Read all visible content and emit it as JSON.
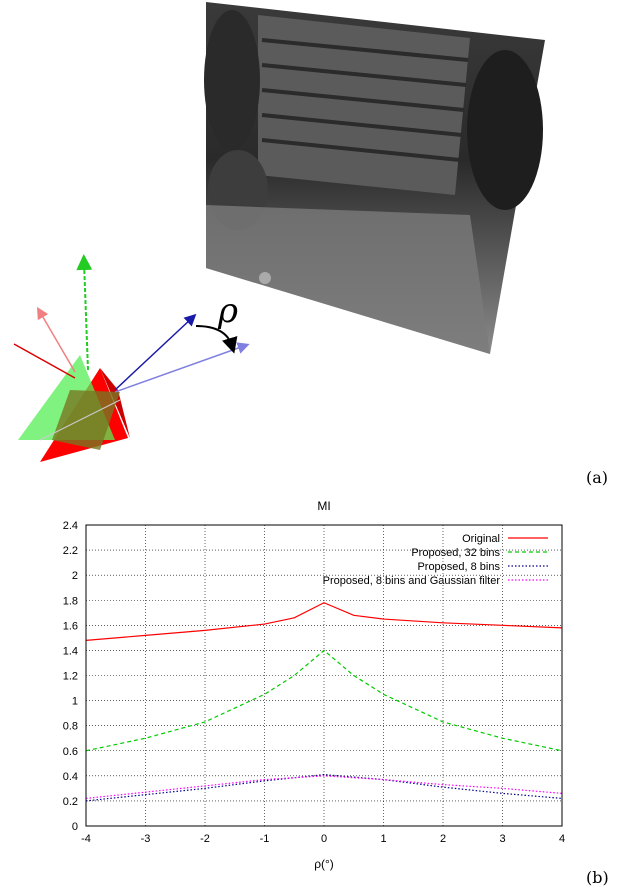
{
  "panel_a": {
    "label": "(a)",
    "rotation_symbol": "ρ"
  },
  "panel_b": {
    "label": "(b)"
  },
  "chart_data": {
    "type": "line",
    "title": "MI",
    "xlabel": "ρ(°)",
    "ylabel": "",
    "xlim": [
      -4,
      4
    ],
    "ylim": [
      0,
      2.4
    ],
    "xticks": [
      -4,
      -3,
      -2,
      -1,
      0,
      1,
      2,
      3,
      4
    ],
    "yticks": [
      0,
      0.2,
      0.4,
      0.6,
      0.8,
      1,
      1.2,
      1.4,
      1.6,
      1.8,
      2,
      2.2,
      2.4
    ],
    "grid": true,
    "legend_position": "top-right",
    "series": [
      {
        "name": "Original",
        "color": "#ff0000",
        "dash": "solid",
        "x": [
          -4,
          -3,
          -2,
          -1,
          -0.5,
          0,
          0.5,
          1,
          2,
          3,
          4
        ],
        "y": [
          1.48,
          1.52,
          1.56,
          1.61,
          1.66,
          1.78,
          1.68,
          1.65,
          1.62,
          1.6,
          1.58
        ]
      },
      {
        "name": "Proposed, 32 bins",
        "color": "#00cc00",
        "dash": "dashed",
        "x": [
          -4,
          -3,
          -2,
          -1,
          -0.5,
          0,
          0.5,
          1,
          2,
          3,
          4
        ],
        "y": [
          0.6,
          0.7,
          0.83,
          1.05,
          1.2,
          1.4,
          1.2,
          1.05,
          0.83,
          0.7,
          0.6
        ]
      },
      {
        "name": "Proposed, 8 bins",
        "color": "#00008b",
        "dash": "dotted",
        "x": [
          -4,
          -3,
          -2,
          -1,
          0,
          1,
          2,
          3,
          4
        ],
        "y": [
          0.2,
          0.25,
          0.3,
          0.36,
          0.41,
          0.37,
          0.31,
          0.26,
          0.22
        ]
      },
      {
        "name": "Proposed, 8 bins and Gaussian filter",
        "color": "#ff00ff",
        "dash": "dotted",
        "x": [
          -4,
          -3,
          -2,
          -1,
          0,
          1,
          2,
          3,
          4
        ],
        "y": [
          0.22,
          0.27,
          0.32,
          0.37,
          0.4,
          0.37,
          0.33,
          0.3,
          0.26
        ]
      }
    ]
  }
}
